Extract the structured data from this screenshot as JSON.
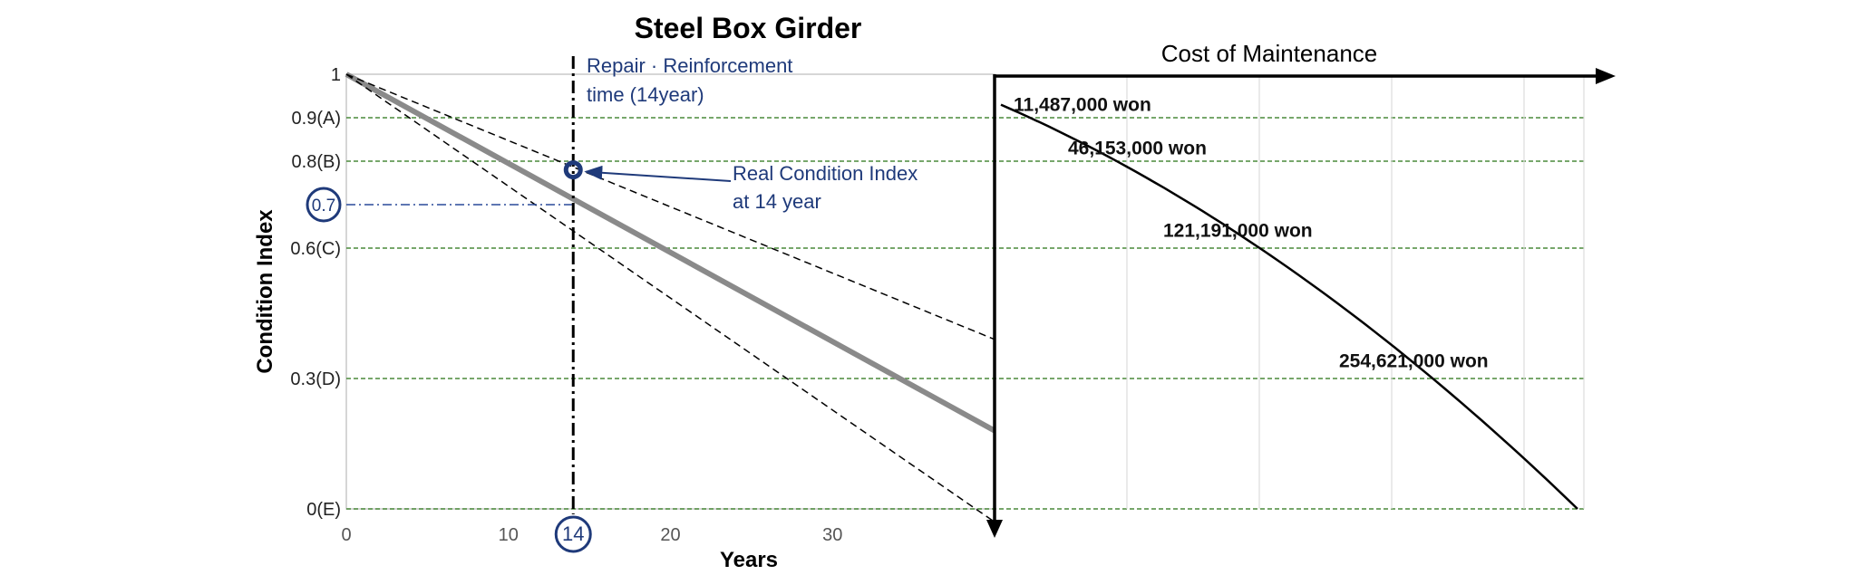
{
  "chart_data": {
    "type": "line",
    "title": "Steel Box Girder",
    "xlabel": "Years",
    "ylabel": "Condition Index",
    "xlim": [
      0,
      40
    ],
    "ylim": [
      0,
      1
    ],
    "x_ticks": [
      "0",
      "10",
      "14",
      "20",
      "30"
    ],
    "x_tick_values": [
      0,
      10,
      14,
      20,
      30
    ],
    "y_ticks": [
      {
        "label": "1",
        "value": 1.0
      },
      {
        "label": "0.9(A)",
        "value": 0.9
      },
      {
        "label": "0.8(B)",
        "value": 0.8
      },
      {
        "label": "0.7",
        "value": 0.7
      },
      {
        "label": "0.6(C)",
        "value": 0.6
      },
      {
        "label": "0.3(D)",
        "value": 0.3
      },
      {
        "label": "0(E)",
        "value": 0.0
      }
    ],
    "grade_lines": [
      0.9,
      0.8,
      0.6,
      0.3,
      0.0
    ],
    "series": [
      {
        "style": "solid-gray",
        "x": [
          0,
          40
        ],
        "y": [
          1.0,
          0.18
        ]
      },
      {
        "style": "dashed-upper",
        "x": [
          0,
          40
        ],
        "y": [
          1.0,
          0.39
        ]
      },
      {
        "style": "dashed-lower",
        "x": [
          0,
          40
        ],
        "y": [
          1.0,
          -0.03
        ]
      }
    ],
    "real_point": {
      "x": 14,
      "y": 0.78
    },
    "repair_time": 14,
    "reference_value": 0.7,
    "annotations": {
      "repair": [
        "Repair · Reinforcement",
        "time (14year)"
      ],
      "real_index": [
        "Real Condition Index",
        "at 14 year"
      ]
    },
    "cost_panel": {
      "title": "Cost  of  Maintenance",
      "curve_y": [
        0.93,
        0.8,
        0.6,
        0.3,
        0.0
      ],
      "labels": [
        {
          "text": "11,487,000 won",
          "y": 0.92
        },
        {
          "text": "46,153,000 won",
          "y": 0.82
        },
        {
          "text": "121,191,000 won",
          "y": 0.63
        },
        {
          "text": "254,621,000 won",
          "y": 0.33
        }
      ]
    }
  }
}
